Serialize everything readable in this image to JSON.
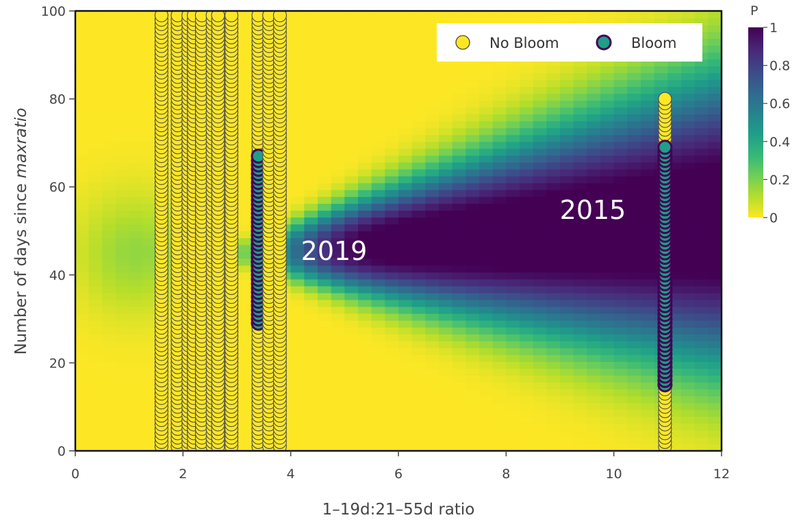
{
  "chart_data": {
    "type": "heatmap",
    "xlabel": "1–19d:21–55d ratio",
    "ylabel_prefix": "Number of days since ",
    "ylabel_italic": "maxratio",
    "xlim": [
      0,
      12
    ],
    "ylim": [
      0,
      100
    ],
    "x_ticks": [
      "0",
      "2",
      "4",
      "6",
      "8",
      "10",
      "12"
    ],
    "y_ticks": [
      "0",
      "20",
      "40",
      "60",
      "80",
      "100"
    ],
    "colorbar": {
      "title": "P",
      "range": [
        0,
        1
      ],
      "ticks": [
        "0",
        "0.2",
        "0.4",
        "0.6",
        "0.8",
        "1"
      ],
      "colorscale": "viridis-reversed",
      "colors": [
        "#fde725",
        "#b5de2b",
        "#6ece58",
        "#35b779",
        "#1f9e89",
        "#26828e",
        "#31688e",
        "#3e4989",
        "#482878",
        "#440154"
      ]
    },
    "legend": {
      "position": "top-right",
      "entries": [
        {
          "name": "No Bloom",
          "color": "#fde725"
        },
        {
          "name": "Bloom",
          "color": "#1f9e89"
        }
      ]
    },
    "annotations": [
      {
        "text": "2019",
        "x": 4.75,
        "y": 45
      },
      {
        "text": "2015",
        "x": 9.75,
        "y": 54
      }
    ],
    "point_columns": [
      {
        "x": 1.6,
        "no_bloom": [
          [
            1,
            99
          ]
        ],
        "bloom": []
      },
      {
        "x": 1.9,
        "no_bloom": [
          [
            1,
            99
          ]
        ],
        "bloom": []
      },
      {
        "x": 2.1,
        "no_bloom": [
          [
            1,
            99
          ]
        ],
        "bloom": []
      },
      {
        "x": 2.2,
        "no_bloom": [
          [
            1,
            99
          ]
        ],
        "bloom": []
      },
      {
        "x": 2.35,
        "no_bloom": [
          [
            1,
            99
          ]
        ],
        "bloom": []
      },
      {
        "x": 2.55,
        "no_bloom": [
          [
            1,
            99
          ]
        ],
        "bloom": []
      },
      {
        "x": 2.65,
        "no_bloom": [
          [
            1,
            99
          ]
        ],
        "bloom": []
      },
      {
        "x": 2.9,
        "no_bloom": [
          [
            1,
            99
          ]
        ],
        "bloom": []
      },
      {
        "x": 3.4,
        "no_bloom": [
          [
            1,
            29
          ],
          [
            68,
            99
          ]
        ],
        "bloom": [
          [
            29,
            67
          ]
        ]
      },
      {
        "x": 3.6,
        "no_bloom": [
          [
            1,
            99
          ]
        ],
        "bloom": []
      },
      {
        "x": 3.8,
        "no_bloom": [
          [
            1,
            99
          ]
        ],
        "bloom": []
      },
      {
        "x": 10.95,
        "no_bloom": [
          [
            1,
            14
          ],
          [
            70,
            80
          ]
        ],
        "bloom": [
          [
            15,
            69
          ]
        ]
      }
    ]
  }
}
